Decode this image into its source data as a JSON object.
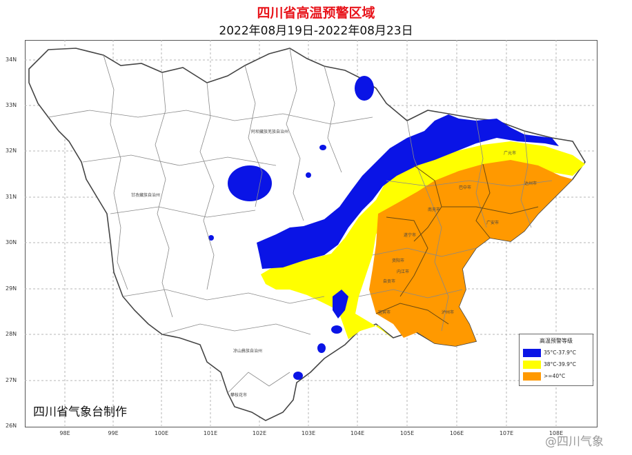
{
  "header": {
    "title": "四川省高温预警区域",
    "subtitle": "2022年08月19日-2022年08月23日"
  },
  "axes": {
    "latitudes": [
      "34N",
      "33N",
      "32N",
      "31N",
      "30N",
      "29N",
      "28N",
      "27N",
      "26N"
    ],
    "longitudes": [
      "98E",
      "99E",
      "100E",
      "101E",
      "102E",
      "103E",
      "104E",
      "105E",
      "106E",
      "107E",
      "108E"
    ]
  },
  "legend": {
    "title": "高温预警等级",
    "items": [
      {
        "label": "35°C-37.9°C",
        "color": "#0a14e6"
      },
      {
        "label": "38°C-39.9°C",
        "color": "#ffff00"
      },
      {
        "label": ">=40°C",
        "color": "#ff9900"
      }
    ]
  },
  "regions": {
    "ganzi": "甘孜藏族自治州",
    "aba": "阿坝藏族羌族自治州",
    "liangshan": "凉山彝族自治州",
    "panzhihua": "攀枝花市",
    "bazhong": "巴中市",
    "dazhou": "达州市",
    "nanchong": "南充市",
    "guangan": "广安市",
    "suining": "遂宁市",
    "ziyang": "资阳市",
    "neijiang": "内江市",
    "zigong": "自贡市",
    "luzhou": "泸州市",
    "yibin": "宜宾市",
    "guangyuan": "广元市"
  },
  "credit": "四川省气象台制作",
  "watermark": "@四川气象"
}
